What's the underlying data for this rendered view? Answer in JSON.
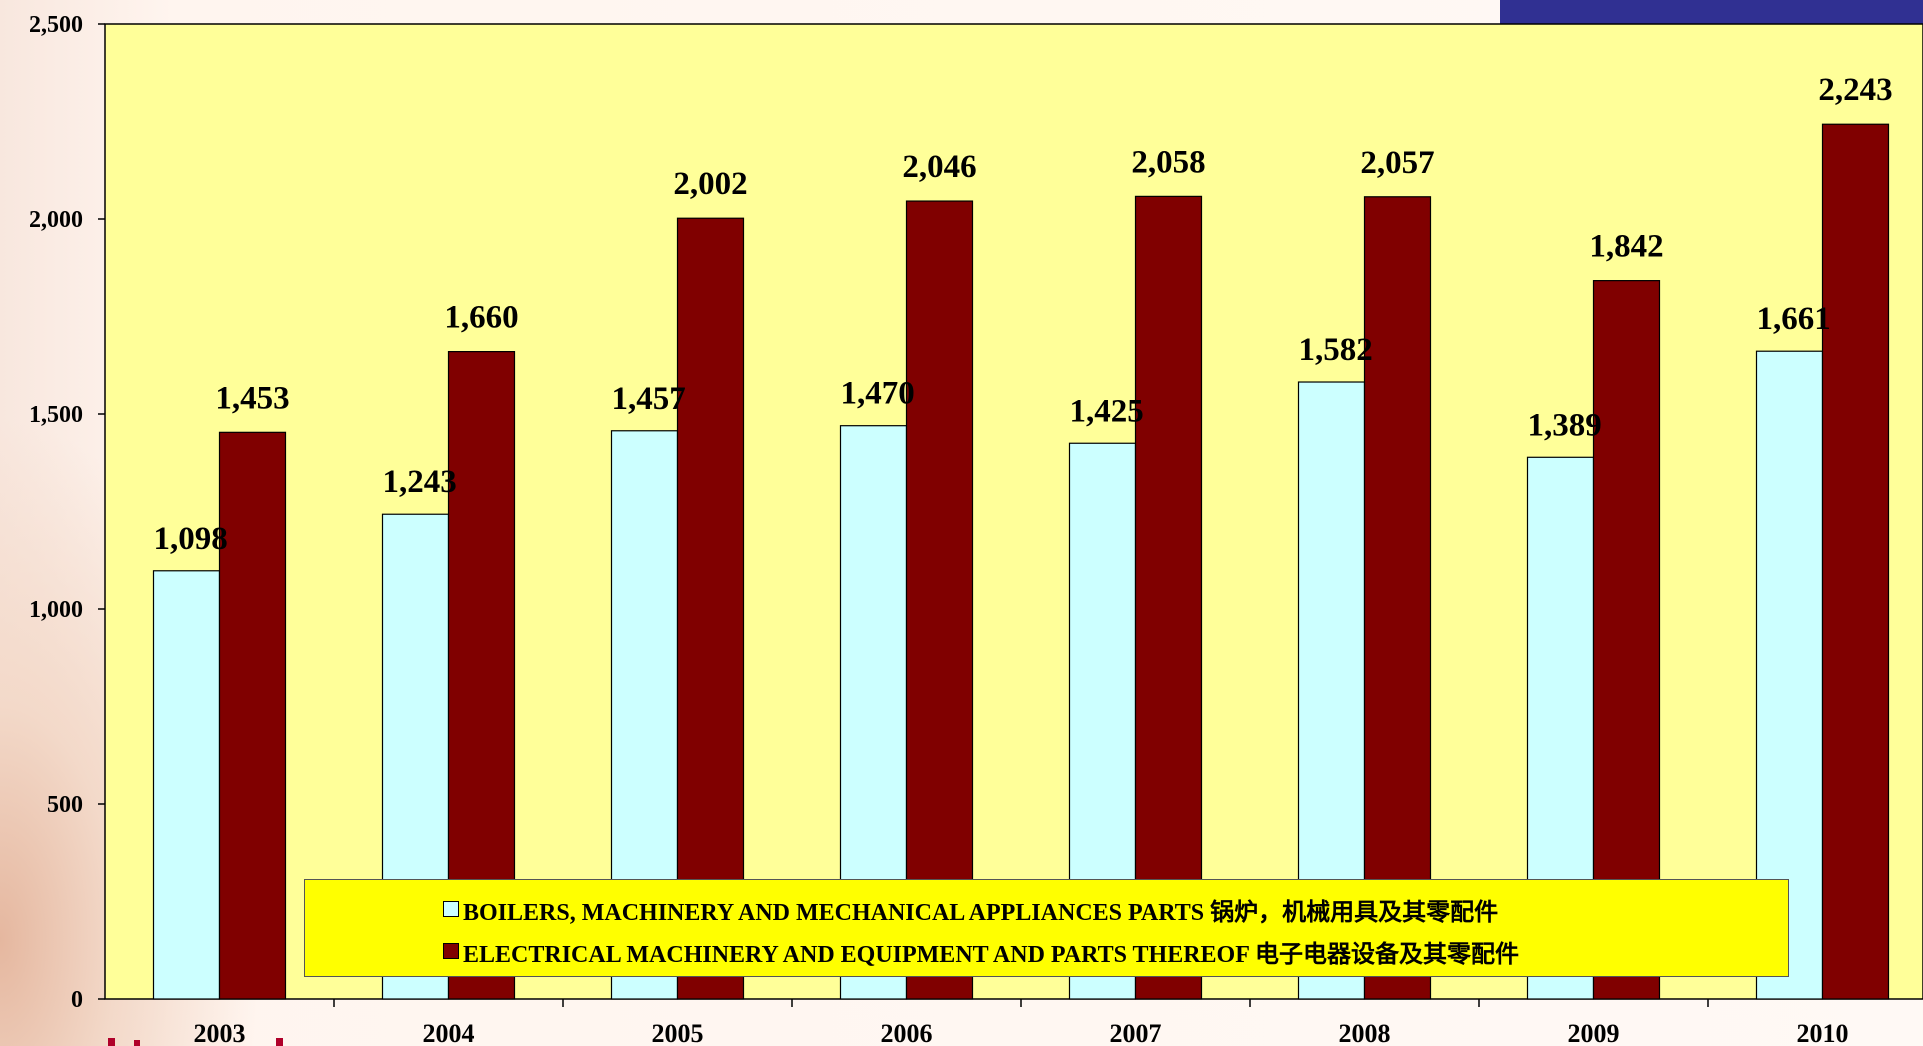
{
  "chart_data": {
    "type": "bar",
    "categories": [
      "2003",
      "2004",
      "2005",
      "2006",
      "2007",
      "2008",
      "2009",
      "2010"
    ],
    "series": [
      {
        "name": "BOILERS, MACHINERY AND MECHANICAL  APPLIANCES  PARTS 锅炉，机械用具及其零配件",
        "values": [
          1098,
          1243,
          1457,
          1470,
          1425,
          1582,
          1389,
          1661
        ],
        "color": "#ccffff"
      },
      {
        "name": "ELECTRICAL  MACHINERY AND EQUIPMENT  AND PARTS THEREOF  电子电器设备及其零配件",
        "values": [
          1453,
          1660,
          2002,
          2046,
          2058,
          2057,
          1842,
          2243
        ],
        "color": "#800000"
      }
    ],
    "value_labels": [
      [
        "1,098",
        "1,243",
        "1,457",
        "1,470",
        "1,425",
        "1,582",
        "1,389",
        "1,661"
      ],
      [
        "1,453",
        "1,660",
        "2,002",
        "2,046",
        "2,058",
        "2,057",
        "1,842",
        "2,243"
      ]
    ],
    "ylim": [
      0,
      2500
    ],
    "yticks": [
      0,
      500,
      1000,
      1500,
      2000,
      2500
    ],
    "ytick_labels": [
      "0",
      "500",
      "1,000",
      "1,500",
      "2,000",
      "2,500"
    ],
    "plot_background": "#ffff99",
    "grid": false,
    "legend_position": "bottom-inside",
    "legend_background": "#ffff00"
  },
  "decor": {
    "corner_block_color": "#303092"
  }
}
